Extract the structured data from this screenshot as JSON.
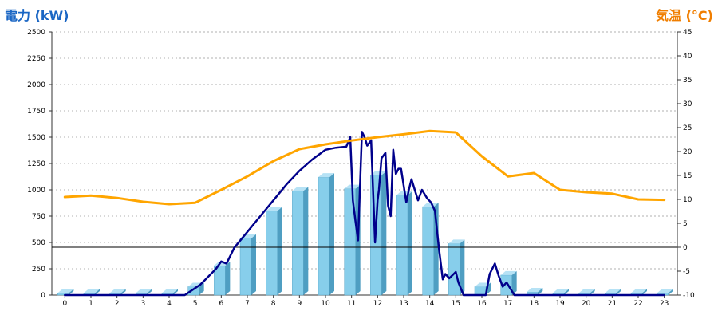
{
  "chart_data": {
    "type": "bar",
    "left_axis_title": "電力 (kW)",
    "right_axis_title": "気温 (°C)",
    "left_axis_color": "#1a66c4",
    "right_axis_color": "#f07e00",
    "categories": [
      "0",
      "1",
      "2",
      "3",
      "4",
      "5",
      "6",
      "7",
      "8",
      "9",
      "10",
      "11",
      "12",
      "13",
      "14",
      "15",
      "16",
      "17",
      "18",
      "19",
      "20",
      "21",
      "22",
      "23"
    ],
    "ylim_left": [
      0,
      2500
    ],
    "yticks_left": [
      0,
      250,
      500,
      750,
      1000,
      1250,
      1500,
      1750,
      2000,
      2250,
      2500
    ],
    "ylim_right": [
      -10,
      45
    ],
    "yticks_right": [
      -10,
      -5,
      0,
      5,
      10,
      15,
      20,
      25,
      30,
      35,
      40,
      45
    ],
    "grid": true,
    "series": [
      {
        "type": "bar",
        "axis": "left",
        "color": "#87ceeb",
        "values": [
          20,
          20,
          20,
          20,
          20,
          80,
          280,
          540,
          800,
          990,
          1120,
          1010,
          1140,
          950,
          840,
          490,
          80,
          190,
          30,
          20,
          20,
          20,
          20,
          20
        ]
      },
      {
        "type": "line",
        "axis": "left",
        "color": "#00008b",
        "x": [
          0,
          1,
          2,
          3,
          4,
          4.6,
          5.2,
          5.8,
          6.0,
          6.2,
          6.5,
          7.0,
          7.5,
          8.0,
          8.5,
          9.0,
          9.5,
          10.0,
          10.4,
          10.8,
          10.95,
          11.05,
          11.15,
          11.25,
          11.4,
          11.5,
          11.6,
          11.75,
          11.9,
          12.0,
          12.05,
          12.15,
          12.3,
          12.4,
          12.5,
          12.6,
          12.7,
          12.8,
          12.9,
          13.1,
          13.2,
          13.3,
          13.55,
          13.7,
          13.9,
          14.05,
          14.2,
          14.35,
          14.5,
          14.6,
          14.75,
          15.0,
          15.1,
          15.3,
          15.4,
          15.6,
          15.8,
          16.0,
          16.15,
          16.3,
          16.5,
          16.65,
          16.8,
          16.95,
          17.1,
          17.25,
          17.4,
          17.6,
          17.8,
          18,
          19,
          20,
          21,
          22,
          23
        ],
        "y": [
          0,
          0,
          0,
          0,
          0,
          0,
          100,
          250,
          320,
          300,
          450,
          600,
          750,
          900,
          1050,
          1180,
          1290,
          1380,
          1400,
          1410,
          1500,
          900,
          700,
          520,
          1550,
          1500,
          1420,
          1470,
          500,
          900,
          1000,
          1300,
          1350,
          850,
          750,
          1380,
          1150,
          1200,
          1200,
          880,
          1000,
          1100,
          900,
          1000,
          920,
          880,
          800,
          450,
          150,
          200,
          160,
          220,
          120,
          0,
          0,
          0,
          0,
          0,
          0,
          200,
          300,
          180,
          80,
          120,
          60,
          0,
          0,
          0,
          0,
          0,
          0,
          0,
          0,
          0,
          0
        ]
      },
      {
        "type": "line",
        "axis": "right",
        "color": "#ffa500",
        "x": [
          0,
          1,
          2,
          3,
          4,
          5,
          6,
          7,
          8,
          9,
          10,
          11,
          12,
          13,
          14,
          15,
          16,
          17,
          18,
          19,
          20,
          21,
          22,
          23
        ],
        "y": [
          10.5,
          10.8,
          10.3,
          9.5,
          9.0,
          9.3,
          12.0,
          14.8,
          18.0,
          20.5,
          21.5,
          22.3,
          23.0,
          23.6,
          24.3,
          24.0,
          19.0,
          14.8,
          15.5,
          12.0,
          11.5,
          11.2,
          10.0,
          9.9
        ]
      }
    ]
  }
}
